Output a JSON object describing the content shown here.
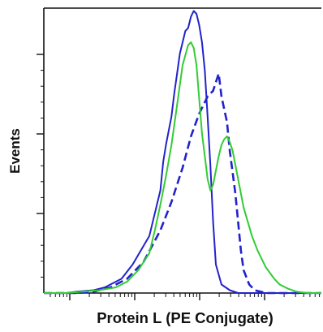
{
  "chart_data": {
    "type": "line",
    "title": "",
    "xlabel": "Protein L (PE Conjugate)",
    "ylabel": "Events",
    "x_scale": "log",
    "xlim": [
      0,
      100
    ],
    "ylim": [
      0,
      100
    ],
    "grid": false,
    "legend": "none",
    "series": [
      {
        "color": "#2222cc",
        "style": "solid",
        "x": [
          0,
          8,
          12,
          18,
          22,
          28,
          32,
          38,
          40,
          42,
          43,
          44,
          45,
          46,
          47,
          48,
          49,
          50,
          51,
          52,
          53,
          54,
          55,
          56,
          57,
          58,
          59,
          60,
          61,
          62,
          64,
          67,
          70,
          100
        ],
        "y": [
          0,
          0,
          0.5,
          1,
          2,
          5,
          10,
          20,
          28,
          36,
          46,
          52,
          57,
          62,
          70,
          77,
          84,
          88,
          92,
          93,
          97,
          99,
          98,
          94,
          88,
          78,
          62,
          45,
          25,
          10,
          3,
          1,
          0,
          0
        ]
      },
      {
        "color": "#2222cc",
        "style": "dashed",
        "x": [
          0,
          12,
          18,
          24,
          30,
          36,
          42,
          46,
          50,
          53,
          56,
          58,
          59,
          61,
          62,
          63,
          64,
          66,
          67,
          69,
          70,
          71,
          72,
          74,
          76,
          80,
          100
        ],
        "y": [
          0,
          0,
          0.5,
          2,
          5,
          11,
          22,
          32,
          44,
          55,
          63,
          67,
          69,
          71,
          74,
          77,
          69,
          60,
          50,
          35,
          25,
          15,
          8,
          3,
          1,
          0,
          0
        ]
      },
      {
        "color": "#33cc33",
        "style": "solid",
        "x": [
          0,
          8,
          14,
          20,
          26,
          30,
          34,
          38,
          40,
          42,
          44,
          46,
          48,
          50,
          52,
          53,
          54,
          55,
          56,
          57,
          58,
          59,
          60,
          61,
          62,
          63,
          64,
          65,
          66,
          67,
          68,
          69,
          70,
          72,
          75,
          77,
          80,
          83,
          85,
          88,
          91,
          95,
          100
        ],
        "y": [
          0,
          0,
          0.5,
          1,
          2,
          4,
          8,
          14,
          22,
          31,
          41,
          52,
          66,
          80,
          87,
          88,
          86,
          80,
          68,
          56,
          48,
          40,
          36,
          38,
          43,
          48,
          52,
          54,
          55,
          53,
          50,
          45,
          40,
          30,
          20,
          15,
          9,
          5,
          3,
          1.5,
          0.5,
          0,
          0
        ]
      }
    ]
  }
}
